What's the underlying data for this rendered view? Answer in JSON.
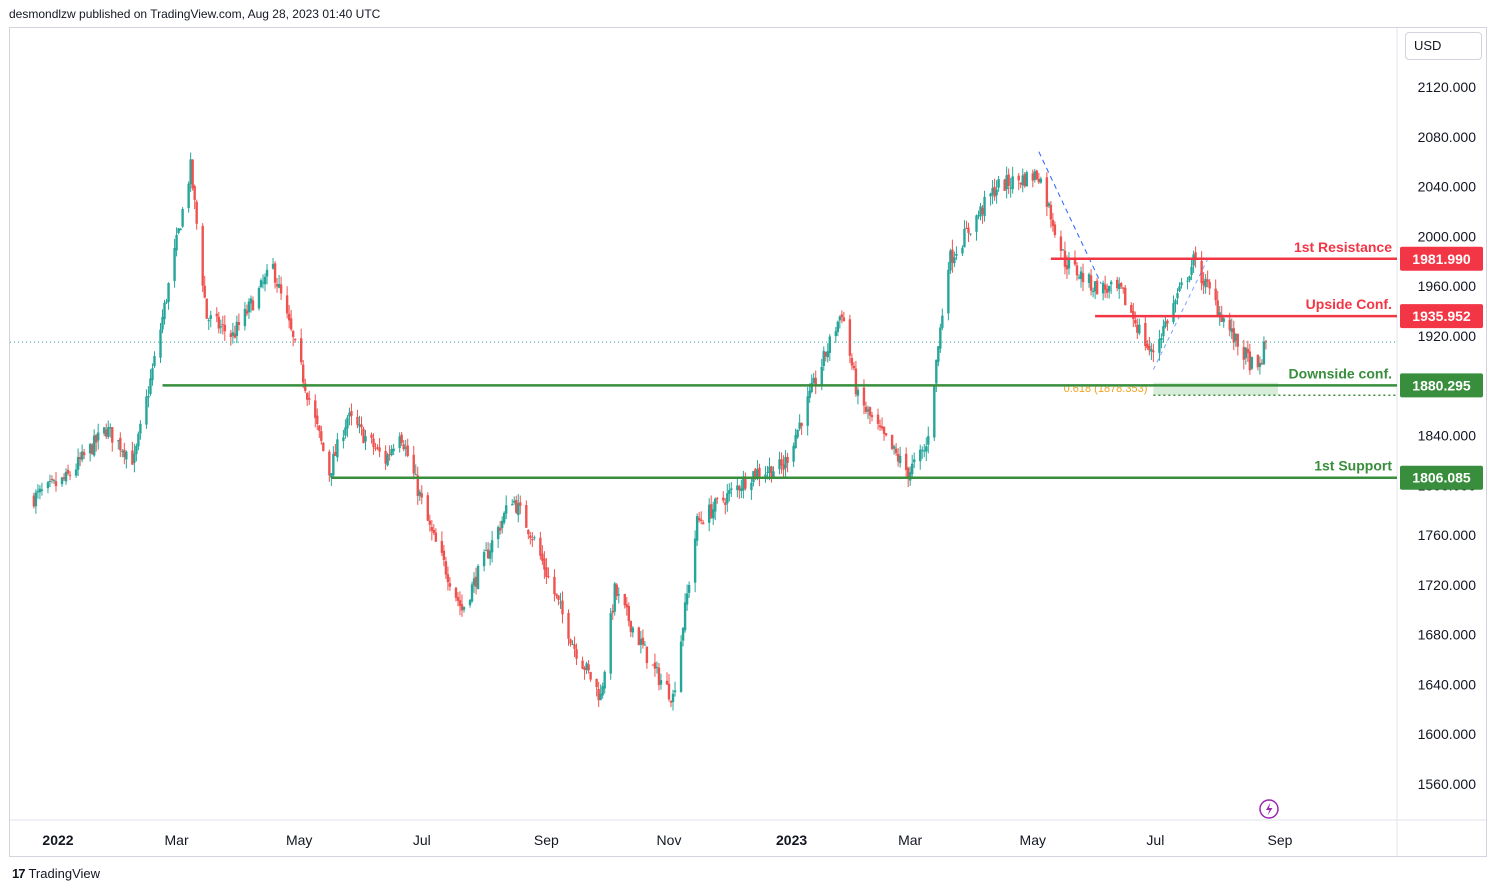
{
  "header": {
    "publisher_text": "desmondlzw published on TradingView.com, Aug 28, 2023 01:40 UTC"
  },
  "currency_selector": {
    "label": "USD"
  },
  "footer": {
    "brand": "TradingView",
    "logo": "17"
  },
  "lightning_icon": "lightning-icon",
  "colors": {
    "up": "#26a69a",
    "down": "#ef5350",
    "resistance": "#f23645",
    "support": "#388e3c",
    "fib": "#f0a21e"
  },
  "chart_data": {
    "type": "candlestick",
    "title": "",
    "xlabel": "",
    "ylabel": "",
    "ylim": [
      1530,
      2160
    ],
    "x_ticks": [
      {
        "label": "2022",
        "date": "2022-01-01",
        "bold": true
      },
      {
        "label": "Mar",
        "date": "2022-03-01",
        "bold": false
      },
      {
        "label": "May",
        "date": "2022-05-01",
        "bold": false
      },
      {
        "label": "Jul",
        "date": "2022-07-01",
        "bold": false
      },
      {
        "label": "Sep",
        "date": "2022-09-01",
        "bold": false
      },
      {
        "label": "Nov",
        "date": "2022-11-01",
        "bold": false
      },
      {
        "label": "2023",
        "date": "2023-01-01",
        "bold": true
      },
      {
        "label": "Mar",
        "date": "2023-03-01",
        "bold": false
      },
      {
        "label": "May",
        "date": "2023-05-01",
        "bold": false
      },
      {
        "label": "Jul",
        "date": "2023-07-01",
        "bold": false
      },
      {
        "label": "Sep",
        "date": "2023-09-01",
        "bold": false
      }
    ],
    "y_ticks": [
      "2120.000",
      "2080.000",
      "2040.000",
      "2000.000",
      "1960.000",
      "1920.000",
      "1840.000",
      "1800.000",
      "1760.000",
      "1720.000",
      "1680.000",
      "1640.000",
      "1600.000",
      "1560.000"
    ],
    "price_path": [
      [
        "2021-12-20",
        1790
      ],
      [
        "2022-01-05",
        1805
      ],
      [
        "2022-01-25",
        1845
      ],
      [
        "2022-02-08",
        1820
      ],
      [
        "2022-02-18",
        1900
      ],
      [
        "2022-03-08",
        2055
      ],
      [
        "2022-03-16",
        1935
      ],
      [
        "2022-03-29",
        1920
      ],
      [
        "2022-04-18",
        1975
      ],
      [
        "2022-05-05",
        1875
      ],
      [
        "2022-05-16",
        1810
      ],
      [
        "2022-05-25",
        1855
      ],
      [
        "2022-06-13",
        1820
      ],
      [
        "2022-06-20",
        1845
      ],
      [
        "2022-07-05",
        1765
      ],
      [
        "2022-07-21",
        1700
      ],
      [
        "2022-08-15",
        1790
      ],
      [
        "2022-08-25",
        1760
      ],
      [
        "2022-09-15",
        1670
      ],
      [
        "2022-09-28",
        1630
      ],
      [
        "2022-10-05",
        1715
      ],
      [
        "2022-10-25",
        1650
      ],
      [
        "2022-11-03",
        1630
      ],
      [
        "2022-11-15",
        1770
      ],
      [
        "2022-12-13",
        1810
      ],
      [
        "2022-12-28",
        1815
      ],
      [
        "2023-01-26",
        1940
      ],
      [
        "2023-02-03",
        1870
      ],
      [
        "2023-02-15",
        1840
      ],
      [
        "2023-02-28",
        1810
      ],
      [
        "2023-03-09",
        1830
      ],
      [
        "2023-03-20",
        1980
      ],
      [
        "2023-04-05",
        2020
      ],
      [
        "2023-04-13",
        2040
      ],
      [
        "2023-05-04",
        2050
      ],
      [
        "2023-05-17",
        1980
      ],
      [
        "2023-05-31",
        1960
      ],
      [
        "2023-06-14",
        1955
      ],
      [
        "2023-06-29",
        1905
      ],
      [
        "2023-07-20",
        1980
      ],
      [
        "2023-08-10",
        1915
      ],
      [
        "2023-08-21",
        1890
      ],
      [
        "2023-08-25",
        1915
      ]
    ],
    "last_price": 1915,
    "levels": [
      {
        "name": "1st Resistance",
        "value": 1981.99,
        "badge": "1981.990",
        "color_key": "resistance",
        "start": "2023-05-10"
      },
      {
        "name": "Upside Conf.",
        "value": 1935.952,
        "badge": "1935.952",
        "color_key": "resistance",
        "start": "2023-06-01"
      },
      {
        "name": "Downside conf.",
        "value": 1880.295,
        "badge": "1880.295",
        "color_key": "support",
        "start": "2022-02-22"
      },
      {
        "name": "1st Support",
        "value": 1806.085,
        "badge": "1806.085",
        "color_key": "support",
        "start": "2022-05-17"
      }
    ],
    "fib": {
      "label": "0.618 (1878.353)",
      "value": 1878.353,
      "start": "2023-06-30",
      "end": "2023-08-31"
    },
    "trendline": {
      "from": [
        "2023-05-04",
        2068
      ],
      "to": [
        "2023-06-04",
        1962
      ]
    },
    "fib_connector": {
      "from": [
        "2023-06-30",
        1893
      ],
      "to": [
        "2023-07-28",
        1985
      ]
    }
  }
}
